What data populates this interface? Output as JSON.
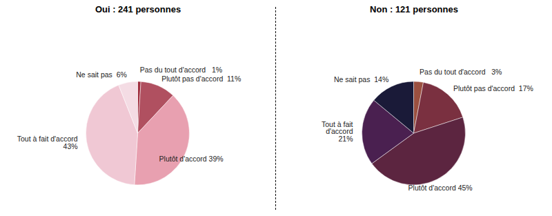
{
  "chart_data": [
    {
      "type": "pie",
      "title": "Oui : 241 personnes",
      "categories": [
        "Pas du tout d'accord   1%",
        "Plutôt pas d'accord  11%",
        "Plutôt d'accord 39%",
        "Tout à fait d'accord\n43%",
        "Ne sait pas  6%"
      ],
      "values": [
        1,
        11,
        39,
        43,
        6
      ],
      "colors": [
        "#a03040",
        "#b05060",
        "#e8a0b0",
        "#f0c8d4",
        "#f4dce4"
      ]
    },
    {
      "type": "pie",
      "title": "Non : 121 personnes",
      "categories": [
        "Pas du tout d'accord   3%",
        "Plutôt pas d'accord  17%",
        "Plutôt d'accord 45%",
        "Tout à fait\nd'accord\n21%",
        "Ne sait pas  14%"
      ],
      "values": [
        3,
        17,
        45,
        21,
        14
      ],
      "colors": [
        "#9b5040",
        "#7a3040",
        "#5c2540",
        "#4a2050",
        "#1a1a38"
      ]
    }
  ]
}
